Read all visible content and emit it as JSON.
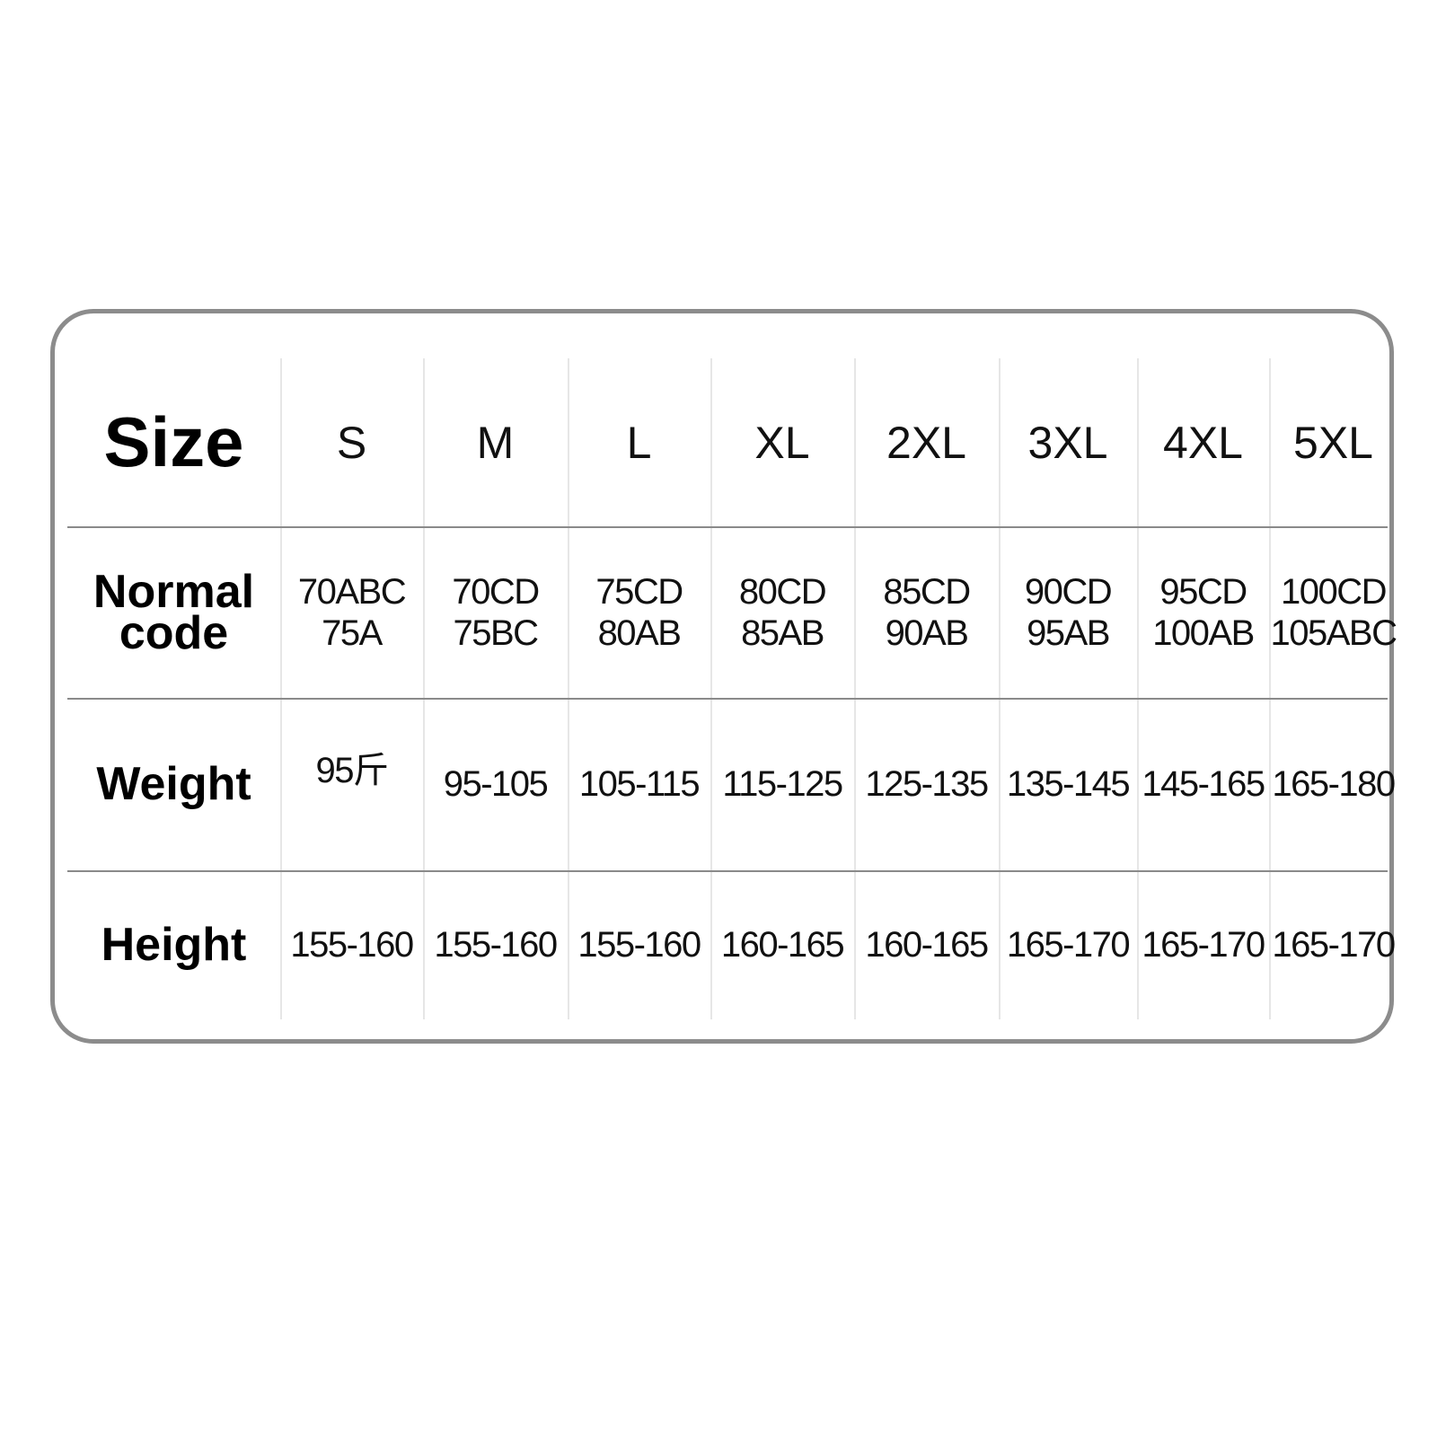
{
  "table": {
    "row_headers": {
      "size": "Size",
      "normal_code_1": "Normal",
      "normal_code_2": "code",
      "weight": "Weight",
      "height": "Height"
    },
    "sizes": [
      "S",
      "M",
      "L",
      "XL",
      "2XL",
      "3XL",
      "4XL",
      "5XL"
    ],
    "normal_code": [
      [
        "70ABC",
        "75A"
      ],
      [
        "70CD",
        "75BC"
      ],
      [
        "75CD",
        "80AB"
      ],
      [
        "80CD",
        "85AB"
      ],
      [
        "85CD",
        "90AB"
      ],
      [
        "90CD",
        "95AB"
      ],
      [
        "95CD",
        "100AB"
      ],
      [
        "100CD",
        "105ABC"
      ]
    ],
    "weight": [
      "95斤",
      "95-105",
      "105-115",
      "115-125",
      "125-135",
      "135-145",
      "145-165",
      "165-180"
    ],
    "height": [
      "155-160",
      "155-160",
      "155-160",
      "160-165",
      "160-165",
      "165-170",
      "165-170",
      "165-170"
    ]
  },
  "colors": {
    "border": "#8c8c8c",
    "divider": "#8a8a8a",
    "column_divider": "#e6e6e6"
  }
}
